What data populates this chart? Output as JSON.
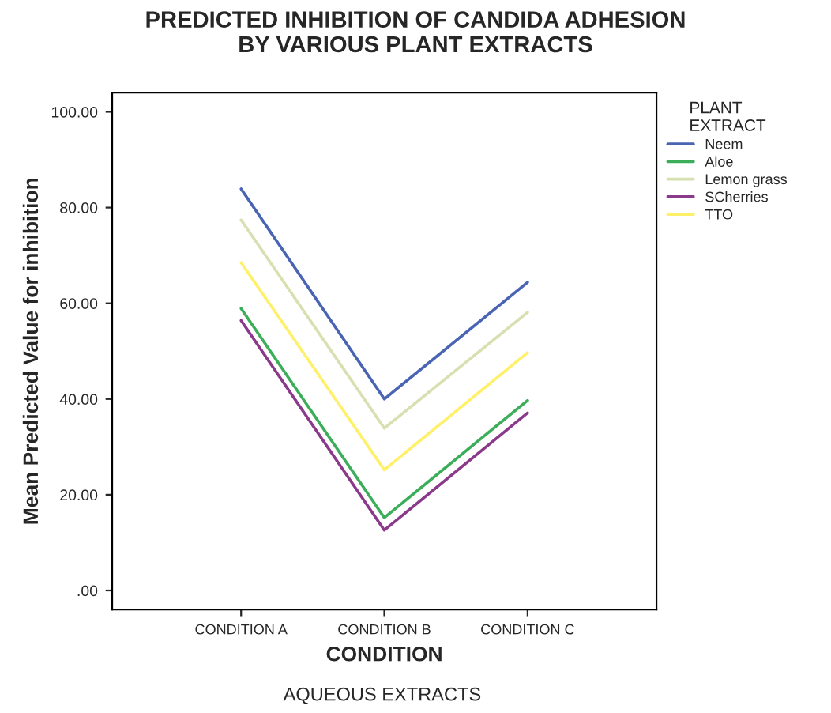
{
  "chart_data": {
    "type": "line",
    "title": "PREDICTED INHIBITION OF CANDIDA ADHESION\nBY VARIOUS PLANT EXTRACTS",
    "xlabel": "CONDITION",
    "ylabel": "Mean Predicted Value for inhibition",
    "legend_title": "PLANT\nEXTRACT",
    "annotations": [
      "AQUEOUS EXTRACTS"
    ],
    "categories": [
      "CONDITION A",
      "CONDITION B",
      "CONDITION C"
    ],
    "series": [
      {
        "name": "Neem",
        "color": "#4a64b4",
        "values": [
          83.9,
          40.0,
          64.4
        ]
      },
      {
        "name": "Aloe",
        "color": "#3cae5a",
        "values": [
          58.9,
          15.2,
          39.7
        ]
      },
      {
        "name": "Lemon grass",
        "color": "#d6e0b0",
        "values": [
          77.4,
          33.9,
          58.1
        ]
      },
      {
        "name": "SCherries",
        "color": "#8b3a8b",
        "values": [
          56.4,
          12.6,
          37.1
        ]
      },
      {
        "name": "TTO",
        "color": "#fff06a",
        "values": [
          68.5,
          25.2,
          49.7
        ]
      }
    ],
    "ylim": [
      -4,
      104
    ],
    "yticks": [
      {
        "value": 0,
        "label": ".00"
      },
      {
        "value": 20,
        "label": "20.00"
      },
      {
        "value": 40,
        "label": "40.00"
      },
      {
        "value": 60,
        "label": "60.00"
      },
      {
        "value": 80,
        "label": "80.00"
      },
      {
        "value": 100,
        "label": "100.00"
      }
    ],
    "grid": false,
    "legend": "right",
    "marker": "none",
    "line_style": "solid"
  }
}
